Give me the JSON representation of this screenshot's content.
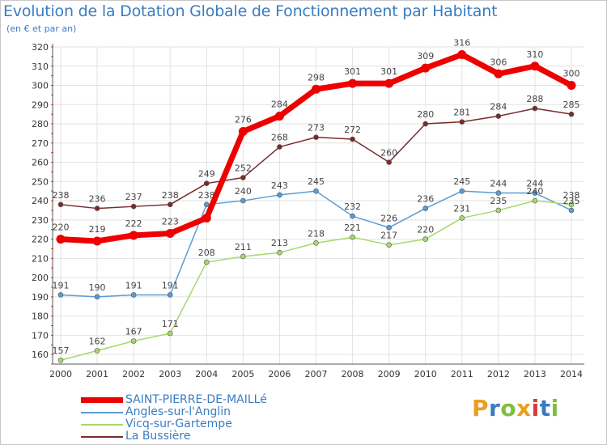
{
  "title": "Evolution de la Dotation Globale de Fonctionnement par Habitant",
  "subtitle": "(en € et par an)",
  "logo": {
    "letters": [
      "P",
      "r",
      "o",
      "x",
      "i",
      "t",
      "i"
    ],
    "colors": [
      "#e8a020",
      "#3a7cc2",
      "#7fbf3f",
      "#e8a020",
      "#d83a3a",
      "#3a7cc2",
      "#7fbf3f"
    ]
  },
  "chart_data": {
    "type": "line",
    "title": "Evolution de la Dotation Globale de Fonctionnement par Habitant",
    "ylabel": "(en € et par an)",
    "xlabel": "",
    "x": [
      "2000",
      "2001",
      "2002",
      "2003",
      "2004",
      "2005",
      "2006",
      "2007",
      "2008",
      "2009",
      "2010",
      "2011",
      "2012",
      "2013",
      "2014"
    ],
    "ylim": [
      155,
      320
    ],
    "yticks": [
      160,
      170,
      180,
      190,
      200,
      210,
      220,
      230,
      240,
      250,
      260,
      270,
      280,
      290,
      300,
      310,
      320
    ],
    "grid": true,
    "legend_position": "bottom-left",
    "series": [
      {
        "name": "SAINT-PIERRE-DE-MAILLé",
        "color": "#ee0000",
        "width": 7,
        "values": [
          220,
          219,
          222,
          223,
          231,
          276,
          284,
          298,
          301,
          301,
          309,
          316,
          306,
          310,
          300
        ],
        "labels": [
          "220",
          "219",
          "222",
          "223",
          "",
          "276",
          "284",
          "298",
          "301",
          "301",
          "309",
          "316",
          "306",
          "310",
          "300"
        ]
      },
      {
        "name": "Angles-sur-l'Anglin",
        "color": "#5b9bd5",
        "width": 1.5,
        "values": [
          191,
          190,
          191,
          191,
          238,
          240,
          243,
          245,
          232,
          226,
          236,
          245,
          244,
          244,
          235
        ],
        "labels": [
          "191",
          "190",
          "191",
          "191",
          "238",
          "240",
          "243",
          "245",
          "232",
          "226",
          "236",
          "245",
          "244",
          "244",
          "235"
        ]
      },
      {
        "name": "Vicq-sur-Gartempe",
        "color": "#a6d96a",
        "width": 1.5,
        "values": [
          157,
          162,
          167,
          171,
          208,
          211,
          213,
          218,
          221,
          217,
          220,
          231,
          235,
          240,
          238
        ],
        "labels": [
          "157",
          "162",
          "167",
          "171",
          "208",
          "211",
          "213",
          "218",
          "221",
          "217",
          "220",
          "231",
          "235",
          "240",
          "238"
        ]
      },
      {
        "name": "La Bussière",
        "color": "#7a2a2a",
        "width": 1.5,
        "values": [
          238,
          236,
          237,
          238,
          249,
          252,
          268,
          273,
          272,
          260,
          280,
          281,
          284,
          288,
          285
        ],
        "labels": [
          "238",
          "236",
          "237",
          "238",
          "249",
          "252",
          "268",
          "273",
          "272",
          "260",
          "280",
          "281",
          "284",
          "288",
          "285"
        ]
      }
    ]
  }
}
